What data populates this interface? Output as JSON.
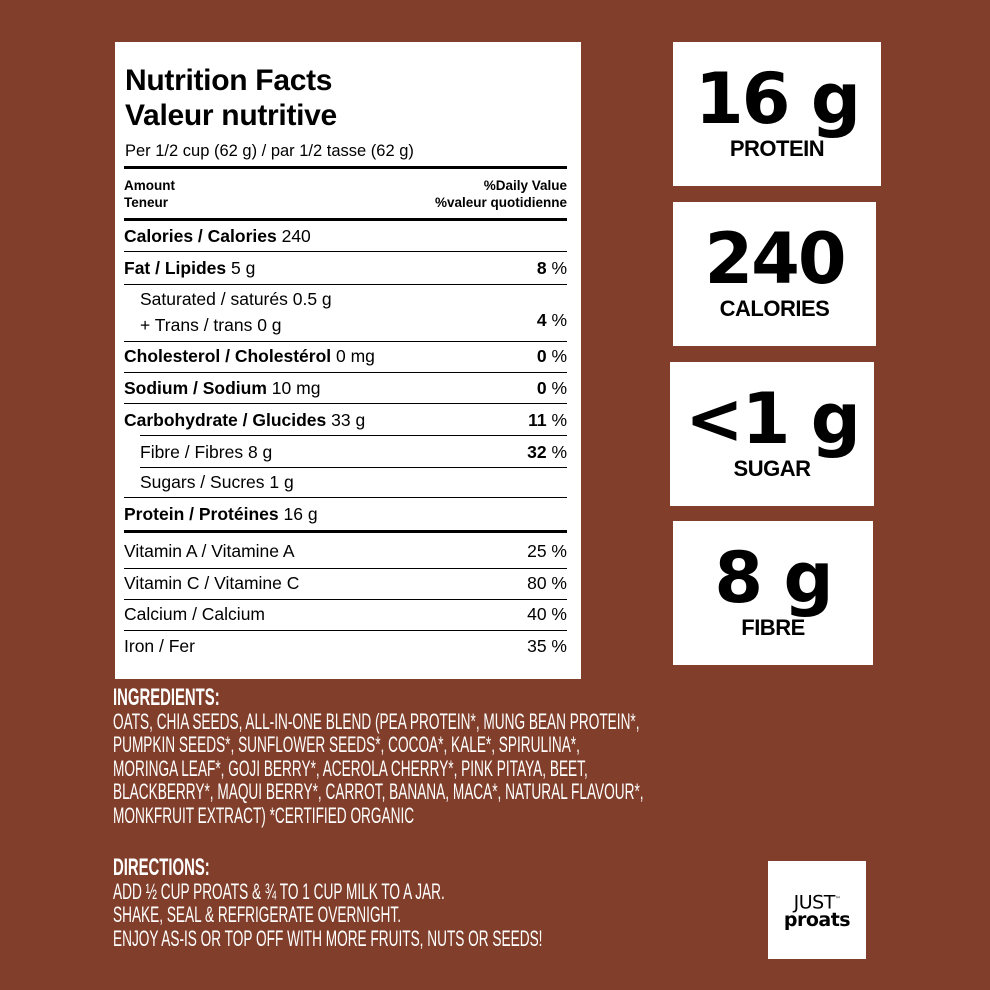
{
  "nutrition": {
    "title_en": "Nutrition Facts",
    "title_fr": "Valeur nutritive",
    "serving": "Per 1/2 cup (62 g) / par 1/2 tasse (62 g)",
    "amount_en": "Amount",
    "amount_fr": "Teneur",
    "dv_en": "%Daily Value",
    "dv_fr": "%valeur quotidienne",
    "calories_label": "Calories / Calories",
    "calories_value": "240",
    "rows": [
      {
        "label": "Fat / Lipides",
        "amount": "5 g",
        "dv": "8",
        "bold": true
      },
      {
        "label": "Saturated / saturés 0.5 g",
        "label2": "+ Trans / trans 0 g",
        "dv": "4"
      },
      {
        "label": "Cholesterol / Cholestérol",
        "amount": "0 mg",
        "dv": "0",
        "bold": true
      },
      {
        "label": "Sodium / Sodium",
        "amount": "10 mg",
        "dv": "0",
        "bold": true
      },
      {
        "label": "Carbohydrate / Glucides",
        "amount": "33 g",
        "dv": "11",
        "bold": true
      },
      {
        "label": "Fibre / Fibres 8 g",
        "dv": "32"
      },
      {
        "label": "Sugars / Sucres 1 g"
      },
      {
        "label": "Protein / Protéines",
        "amount": "16 g",
        "bold": true
      }
    ],
    "percent_sign": "%",
    "vitamins": [
      {
        "label": "Vitamin A / Vitamine A",
        "dv": "25 %"
      },
      {
        "label": "Vitamin C / Vitamine C",
        "dv": "80 %"
      },
      {
        "label": "Calcium / Calcium",
        "dv": "40 %"
      },
      {
        "label": "Iron / Fer",
        "dv": "35 %"
      }
    ]
  },
  "highlights": [
    {
      "value": "16 g",
      "label": "PROTEIN"
    },
    {
      "value": "240",
      "label": "CALORIES"
    },
    {
      "value": "<1 g",
      "label": "SUGAR"
    },
    {
      "value": "8 g",
      "label": "FIBRE"
    }
  ],
  "ingredients": {
    "heading": "INGREDIENTS:",
    "lines": [
      "OATS, CHIA SEEDS, ALL-IN-ONE BLEND (PEA PROTEIN*, MUNG BEAN PROTEIN*,",
      "PUMPKIN SEEDS*, SUNFLOWER SEEDS*, COCOA*, KALE*, SPIRULINA*,",
      "MORINGA LEAF*, GOJI BERRY*, ACEROLA CHERRY*, PINK PITAYA, BEET,",
      "BLACKBERRY*, MAQUI BERRY*, CARROT, BANANA, MACA*, NATURAL FLAVOUR*,",
      "MONKFRUIT EXTRACT) *CERTIFIED ORGANIC"
    ]
  },
  "directions": {
    "heading": "DIRECTIONS:",
    "lines": [
      "ADD ½ CUP PROATS & ¾ TO 1 CUP MILK TO A JAR.",
      "SHAKE, SEAL & REFRIGERATE OVERNIGHT.",
      "ENJOY AS-IS OR TOP OFF WITH MORE FRUITS, NUTS OR SEEDS!"
    ]
  },
  "logo": {
    "line1": "JUST",
    "line2": "proats",
    "tm": "™"
  },
  "colors": {
    "background": "#813f2b",
    "panel": "#ffffff"
  }
}
